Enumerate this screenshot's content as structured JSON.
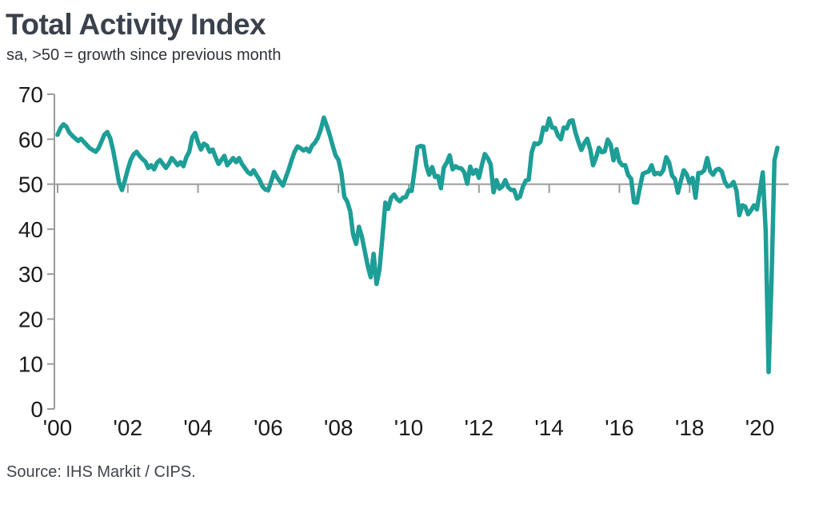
{
  "header": {
    "title": "Total Activity Index",
    "subtitle": "sa, >50 = growth since previous month"
  },
  "footer": {
    "source": "Source: IHS Markit / CIPS."
  },
  "chart_data": {
    "type": "line",
    "title": "Total Activity Index",
    "subtitle": "sa, >50 = growth since previous month",
    "source": "Source: IHS Markit / CIPS.",
    "frequency": "monthly",
    "x_start": "2000-01",
    "x_end": "2020-07",
    "ylim": [
      0,
      70
    ],
    "y_ticks": [
      0,
      10,
      20,
      30,
      40,
      50,
      60,
      70
    ],
    "x_tick_labels": [
      "'00",
      "'02",
      "'04",
      "'06",
      "'08",
      "'10",
      "'12",
      "'14",
      "'16",
      "'18",
      "'20"
    ],
    "x_tick_month_index": [
      0,
      24,
      48,
      72,
      96,
      120,
      144,
      168,
      192,
      216,
      240
    ],
    "reference_line": 50,
    "grid": false,
    "legend": "none",
    "line_color": "#1d9e97",
    "axis_color": "#9b9b9b",
    "tick_label_color": "#1a1a1a",
    "series": [
      {
        "name": "Total Activity Index",
        "values": [
          61.0,
          62.5,
          63.3,
          62.8,
          61.5,
          60.8,
          60.2,
          59.6,
          60.1,
          59.4,
          58.7,
          58.0,
          57.6,
          57.2,
          58.0,
          59.5,
          61.0,
          61.6,
          60.2,
          57.5,
          54.0,
          50.4,
          48.7,
          50.8,
          53.3,
          55.4,
          56.6,
          57.2,
          56.3,
          55.6,
          55.0,
          53.6,
          54.2,
          53.3,
          54.8,
          55.4,
          54.5,
          53.6,
          54.5,
          55.8,
          55.1,
          54.2,
          54.9,
          54.0,
          56.0,
          57.2,
          60.4,
          61.4,
          59.3,
          57.7,
          59.0,
          58.6,
          57.2,
          57.7,
          56.0,
          54.5,
          55.4,
          56.3,
          54.2,
          55.0,
          55.8,
          54.9,
          55.8,
          54.5,
          53.6,
          52.7,
          52.2,
          53.1,
          52.0,
          51.0,
          49.5,
          48.8,
          48.7,
          50.6,
          52.7,
          51.5,
          50.6,
          49.7,
          51.5,
          53.3,
          55.4,
          57.2,
          58.4,
          58.0,
          57.5,
          57.9,
          57.2,
          58.6,
          59.3,
          60.4,
          62.3,
          64.8,
          63.0,
          61.0,
          58.6,
          56.4,
          55.4,
          52.4,
          47.2,
          46.1,
          43.9,
          38.8,
          36.7,
          40.5,
          38.3,
          35.1,
          31.8,
          29.3,
          34.5,
          27.8,
          30.9,
          38.1,
          45.9,
          44.5,
          47.0,
          47.7,
          46.7,
          46.2,
          47.0,
          47.1,
          48.6,
          48.5,
          53.1,
          58.2,
          58.5,
          58.4,
          54.1,
          52.1,
          53.8,
          51.6,
          51.8,
          49.1,
          53.7,
          54.8,
          56.4,
          53.3,
          54.0,
          53.6,
          53.5,
          52.6,
          50.1,
          53.9,
          52.3,
          53.2,
          51.4,
          54.3,
          56.7,
          55.8,
          54.4,
          48.2,
          50.9,
          49.0,
          49.5,
          50.9,
          49.3,
          48.7,
          48.7,
          46.8,
          47.2,
          49.4,
          50.8,
          51.0,
          57.0,
          59.1,
          58.9,
          59.4,
          62.6,
          62.1,
          64.6,
          62.6,
          62.5,
          60.8,
          60.0,
          62.6,
          62.4,
          64.0,
          64.2,
          61.4,
          59.4,
          57.6,
          59.1,
          60.1,
          57.8,
          54.2,
          55.9,
          58.1,
          57.1,
          57.3,
          59.9,
          58.8,
          55.3,
          57.8,
          55.0,
          54.2,
          54.2,
          52.0,
          51.2,
          46.0,
          45.9,
          49.2,
          52.3,
          52.6,
          52.8,
          54.2,
          52.2,
          52.5,
          52.2,
          53.1,
          56.0,
          54.8,
          51.9,
          51.1,
          48.1,
          50.8,
          53.1,
          52.2,
          50.2,
          51.4,
          47.0,
          52.5,
          52.5,
          53.1,
          55.8,
          52.9,
          52.1,
          53.2,
          53.4,
          52.8,
          50.6,
          49.5,
          49.7,
          50.5,
          48.6,
          43.1,
          45.3,
          45.0,
          43.3,
          44.2,
          45.3,
          44.4,
          48.4,
          52.6,
          39.3,
          8.2,
          28.9,
          55.3,
          58.1
        ]
      }
    ]
  }
}
